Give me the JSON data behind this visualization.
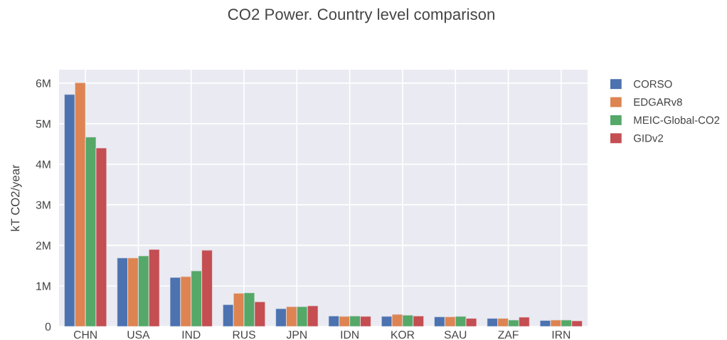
{
  "chart_data": {
    "type": "bar",
    "title": "CO2 Power. Country level comparison",
    "ylabel": "kT CO2/year",
    "categories": [
      "CHN",
      "USA",
      "IND",
      "RUS",
      "JPN",
      "IDN",
      "KOR",
      "SAU",
      "ZAF",
      "IRN"
    ],
    "series": [
      {
        "name": "CORSO",
        "color": "#4c72b0",
        "values": [
          5720000,
          1690000,
          1210000,
          540000,
          440000,
          260000,
          250000,
          240000,
          200000,
          150000
        ]
      },
      {
        "name": "EDGARv8",
        "color": "#dd8452",
        "values": [
          6010000,
          1690000,
          1230000,
          820000,
          490000,
          250000,
          300000,
          240000,
          200000,
          160000
        ]
      },
      {
        "name": "MEIC-Global-CO2",
        "color": "#55a868",
        "values": [
          4670000,
          1740000,
          1370000,
          830000,
          490000,
          260000,
          280000,
          250000,
          160000,
          160000
        ]
      },
      {
        "name": "GIDv2",
        "color": "#c44e52",
        "values": [
          4400000,
          1900000,
          1880000,
          610000,
          510000,
          250000,
          260000,
          200000,
          230000,
          140000
        ]
      }
    ],
    "ylim": [
      0,
      6330000
    ],
    "yticks": [
      0,
      {
        "value": 1000000,
        "label": "1M"
      },
      {
        "value": 2000000,
        "label": "2M"
      },
      {
        "value": 3000000,
        "label": "3M"
      },
      {
        "value": 4000000,
        "label": "4M"
      },
      {
        "value": 5000000,
        "label": "5M"
      },
      {
        "value": 6000000,
        "label": "6M"
      }
    ],
    "grid": true,
    "legend": "top right"
  }
}
